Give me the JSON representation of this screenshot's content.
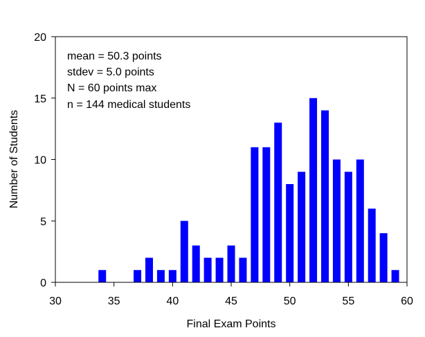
{
  "chart_data": {
    "type": "bar",
    "title": "",
    "xlabel": "Final Exam Points",
    "ylabel": "Number of Students",
    "xlim": [
      30,
      60
    ],
    "ylim": [
      0,
      20
    ],
    "x_ticks": [
      "30",
      "35",
      "40",
      "45",
      "50",
      "55",
      "60"
    ],
    "y_ticks": [
      "0",
      "5",
      "10",
      "15",
      "20"
    ],
    "x_tick_values": [
      30,
      35,
      40,
      45,
      50,
      55,
      60
    ],
    "y_tick_values": [
      0,
      5,
      10,
      15,
      20
    ],
    "grid": false,
    "legend": "none",
    "bar_color": "#0000ff",
    "x": [
      34,
      37,
      38,
      39,
      40,
      41,
      42,
      43,
      44,
      45,
      46,
      47,
      48,
      49,
      50,
      51,
      52,
      53,
      54,
      55,
      56,
      57,
      58,
      59
    ],
    "values": [
      1,
      1,
      2,
      1,
      1,
      5,
      3,
      2,
      2,
      3,
      2,
      11,
      11,
      13,
      8,
      9,
      15,
      14,
      10,
      9,
      10,
      6,
      4,
      1
    ],
    "annotations": [
      "mean = 50.3 points",
      "stdev = 5.0 points",
      "N = 60 points max",
      "n = 144 medical students"
    ]
  }
}
